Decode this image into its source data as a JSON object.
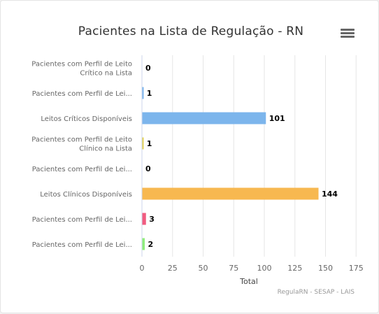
{
  "title": "Pacientes na Lista de Regulação - RN",
  "credits": "RegulaRN - SESAP - LAIS",
  "menu_icon": "hamburger-menu-icon",
  "chart_data": {
    "type": "bar",
    "orientation": "horizontal",
    "categories": [
      [
        "Pacientes com Perfil de Leito",
        "Crítico na Lista"
      ],
      [
        "Pacientes com Perfil de Lei..."
      ],
      [
        "Leitos Críticos Disponíveis"
      ],
      [
        "Pacientes com Perfil de Leito",
        "Clínico na Lista"
      ],
      [
        "Pacientes com Perfil de Lei..."
      ],
      [
        "Leitos Clínicos Disponíveis"
      ],
      [
        "Pacientes com Perfil de Lei..."
      ],
      [
        "Pacientes com Perfil de Lei..."
      ]
    ],
    "values": [
      0,
      1,
      101,
      1,
      0,
      144,
      3,
      2
    ],
    "colors": [
      "#7cb5ec",
      "#7cb5ec",
      "#7cb5ec",
      "#e4d354",
      "#f7a35c",
      "#f7b850",
      "#f15c80",
      "#90ed7d"
    ],
    "xlabel": "Total",
    "xlim": [
      0,
      175
    ],
    "ticks": [
      0,
      25,
      50,
      75,
      100,
      125,
      150,
      175
    ],
    "grid": true,
    "legend": "none"
  }
}
